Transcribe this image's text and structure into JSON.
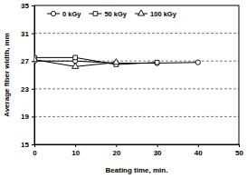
{
  "chart_data": {
    "type": "line",
    "x_label": "Beating time, min.",
    "y_label": "Average fiber width, mm",
    "x": [
      0,
      10,
      20,
      30,
      40
    ],
    "series": [
      {
        "name": "0 kGy",
        "color": "#000000",
        "marker": "circle",
        "values": [
          27.0,
          27.0,
          26.7,
          26.7,
          26.8
        ]
      },
      {
        "name": "50 kGy",
        "color": "#000000",
        "marker": "square",
        "values": [
          27.5,
          27.5,
          26.5,
          26.8,
          null
        ]
      },
      {
        "name": "100 kGy",
        "color": "#000000",
        "marker": "triangle",
        "values": [
          27.2,
          26.2,
          26.8,
          null,
          null
        ]
      }
    ],
    "xlim": [
      0,
      50
    ],
    "xticks": [
      0,
      10,
      20,
      30,
      40,
      50
    ],
    "ylim": [
      15,
      35
    ],
    "yticks": [
      15,
      19,
      23,
      27,
      31,
      35
    ],
    "grid": true,
    "legend": "top"
  }
}
